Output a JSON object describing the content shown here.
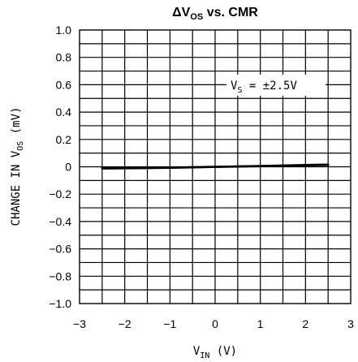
{
  "chart_data": {
    "type": "line",
    "title": {
      "main": "ΔV",
      "sub": "OS",
      "rest": " vs. CMR"
    },
    "xlabel": {
      "main": "V",
      "sub": "IN",
      "rest": " (V)"
    },
    "ylabel": {
      "main": "CHANGE IN V",
      "sub": "OS",
      "rest": " (mV)"
    },
    "xlim": [
      -3,
      3
    ],
    "ylim": [
      -1.0,
      1.0
    ],
    "xticks": [
      -3,
      -2,
      -1,
      0,
      1,
      2,
      3
    ],
    "xtick_labels": [
      "−3",
      "−2",
      "−1",
      "0",
      "1",
      "2",
      "3"
    ],
    "yticks": [
      -1.0,
      -0.8,
      -0.6,
      -0.4,
      -0.2,
      0,
      0.2,
      0.4,
      0.6,
      0.8,
      1.0
    ],
    "ytick_labels": [
      "−1.0",
      "−0.8",
      "−0.6",
      "−0.4",
      "−0.2",
      "0",
      "0.2",
      "0.4",
      "0.6",
      "0.8",
      "1.0"
    ],
    "grid": true,
    "legend": "none",
    "annotation": {
      "main": "V",
      "sub": "S",
      "rest": " = ±2.5V"
    },
    "series": [
      {
        "x": [
          -2.5,
          -2.0,
          -1.5,
          -1.0,
          -0.5,
          0,
          0.5,
          1.0,
          1.5,
          2.0,
          2.5
        ],
        "y": [
          -0.01,
          -0.009,
          -0.008,
          -0.006,
          -0.003,
          0.0,
          0.003,
          0.006,
          0.009,
          0.013,
          0.016
        ]
      },
      {
        "x": [
          -2.5,
          -2.0,
          -1.5,
          -1.0,
          -0.5,
          0,
          0.5,
          1.0,
          1.5,
          2.0,
          2.5
        ],
        "y": [
          -0.012,
          -0.011,
          -0.009,
          -0.007,
          -0.004,
          -0.001,
          0.002,
          0.005,
          0.008,
          0.011,
          0.013
        ]
      }
    ]
  }
}
